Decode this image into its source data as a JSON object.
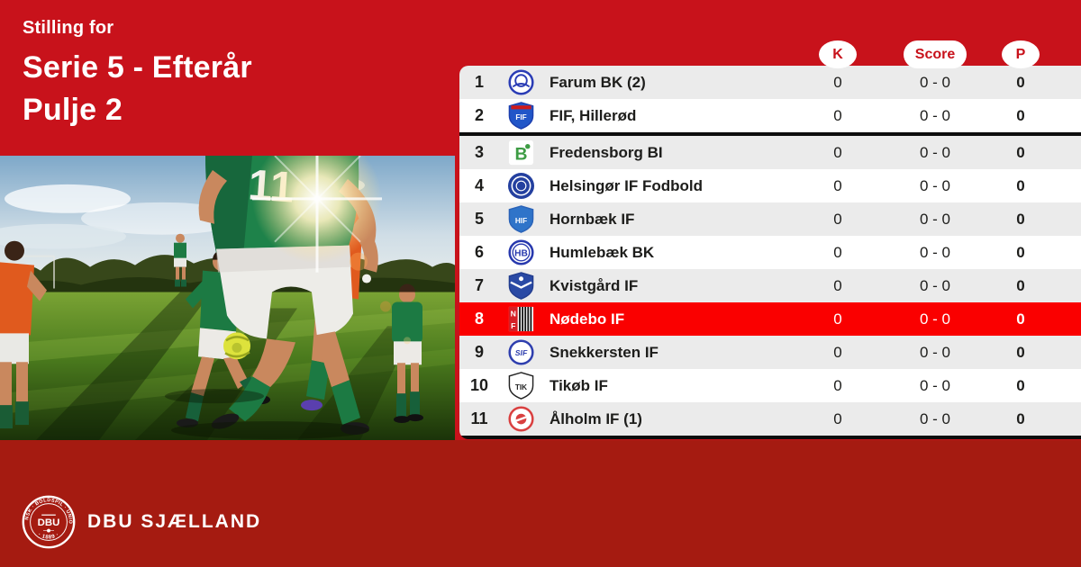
{
  "colors": {
    "brand_red": "#C8121B",
    "dark_red": "#A51B11",
    "highlight_red": "#FA0000",
    "row_gray": "#EBEBEB",
    "row_white": "#FFFFFF",
    "text_dark": "#1D1D1B",
    "divider_black": "#0D0D0D"
  },
  "header": {
    "eyebrow": "Stilling for",
    "title_line1": "Serie 5 - Efterår",
    "title_line2": "Pulje 2"
  },
  "photo": {
    "jersey_number": "11"
  },
  "table": {
    "column_badges": [
      {
        "key": "k",
        "label": "K"
      },
      {
        "key": "score",
        "label": "Score"
      },
      {
        "key": "p",
        "label": "P"
      }
    ],
    "rows": [
      {
        "pos": "1",
        "team": "Farum BK (2)",
        "k": "0",
        "score": "0 - 0",
        "p": "0",
        "highlight": false,
        "divider_after": false,
        "crest": {
          "name": "farum-bk-crest",
          "shape": "ring-circle",
          "color": "#2b3db5",
          "bg": "#ffffff",
          "label": "",
          "labelColor": "#2b3db5"
        }
      },
      {
        "pos": "2",
        "team": "FIF, Hillerød",
        "k": "0",
        "score": "0 - 0",
        "p": "0",
        "highlight": false,
        "divider_after": true,
        "crest": {
          "name": "fif-hilleroed-crest",
          "shape": "shield",
          "color": "#1c3fae",
          "bg": "#2156c8",
          "band": "#cf1a1a",
          "label": "FIF",
          "labelColor": "#ffffff"
        }
      },
      {
        "pos": "3",
        "team": "Fredensborg BI",
        "k": "0",
        "score": "0 - 0",
        "p": "0",
        "highlight": false,
        "divider_after": false,
        "crest": {
          "name": "fredensborg-bi-crest",
          "shape": "square",
          "color": "#3d9c44",
          "bg": "#ffffff",
          "label": "B",
          "labelColor": "#3d9c44",
          "dot": true
        }
      },
      {
        "pos": "4",
        "team": "Helsingør IF Fodbold",
        "k": "0",
        "score": "0 - 0",
        "p": "0",
        "highlight": false,
        "divider_after": false,
        "crest": {
          "name": "helsingoer-if-fodbold-crest",
          "shape": "solid-circle",
          "color": "#24409f",
          "bg": "#24409f",
          "label": "",
          "labelColor": "#ffffff"
        }
      },
      {
        "pos": "5",
        "team": "Hornbæk IF",
        "k": "0",
        "score": "0 - 0",
        "p": "0",
        "highlight": false,
        "divider_after": false,
        "crest": {
          "name": "hornbaek-if-crest",
          "shape": "shield",
          "color": "#2a62b8",
          "bg": "#2f74c9",
          "label": "HIF",
          "labelColor": "#ffffff"
        }
      },
      {
        "pos": "6",
        "team": "Humlebæk BK",
        "k": "0",
        "score": "0 - 0",
        "p": "0",
        "highlight": false,
        "divider_after": false,
        "crest": {
          "name": "humlebaek-bk-crest",
          "shape": "ring-circle",
          "color": "#2839ae",
          "bg": "#ffffff",
          "label": "HB",
          "labelColor": "#2839ae",
          "double": true
        }
      },
      {
        "pos": "7",
        "team": "Kvistgård IF",
        "k": "0",
        "score": "0 - 0",
        "p": "0",
        "highlight": false,
        "divider_after": false,
        "crest": {
          "name": "kvistgaard-if-crest",
          "shape": "shield",
          "color": "#223d8f",
          "bg": "#2a4aa5",
          "label": "",
          "labelColor": "#ffffff",
          "chevron": true
        }
      },
      {
        "pos": "8",
        "team": "Nødebo IF",
        "k": "0",
        "score": "0 - 0",
        "p": "0",
        "highlight": true,
        "divider_after": false,
        "crest": {
          "name": "noedebo-if-crest",
          "shape": "noedebo",
          "color": "#d42027",
          "bg": "#ffffff",
          "label": "NF",
          "labelColor": "#ffffff"
        }
      },
      {
        "pos": "9",
        "team": "Snekkersten IF",
        "k": "0",
        "score": "0 - 0",
        "p": "0",
        "highlight": false,
        "divider_after": false,
        "crest": {
          "name": "snekkersten-if-crest",
          "shape": "ring-circle",
          "color": "#2f3fae",
          "bg": "#ffffff",
          "label": "SIF",
          "labelColor": "#2f3fae",
          "italic": true
        }
      },
      {
        "pos": "10",
        "team": "Tikøb IF",
        "k": "0",
        "score": "0 - 0",
        "p": "0",
        "highlight": false,
        "divider_after": false,
        "crest": {
          "name": "tikoeb-if-crest",
          "shape": "shield",
          "color": "#222222",
          "bg": "#ffffff",
          "label": "TIK",
          "labelColor": "#222222"
        }
      },
      {
        "pos": "11",
        "team": "Ålholm IF (1)",
        "k": "0",
        "score": "0 - 0",
        "p": "0",
        "highlight": false,
        "divider_after": true,
        "crest": {
          "name": "aalholm-if-crest",
          "shape": "ring-circle",
          "color": "#d94040",
          "bg": "#ffffff",
          "label": "",
          "labelColor": "#d94040",
          "center_dot": true
        }
      }
    ]
  },
  "footer": {
    "brand": "DBU SJÆLLAND",
    "crest": {
      "arc_top": "DANSK · BOLDSPIL · UNION",
      "center": "DBU",
      "arc_bottom": "· 1889 ·"
    }
  }
}
